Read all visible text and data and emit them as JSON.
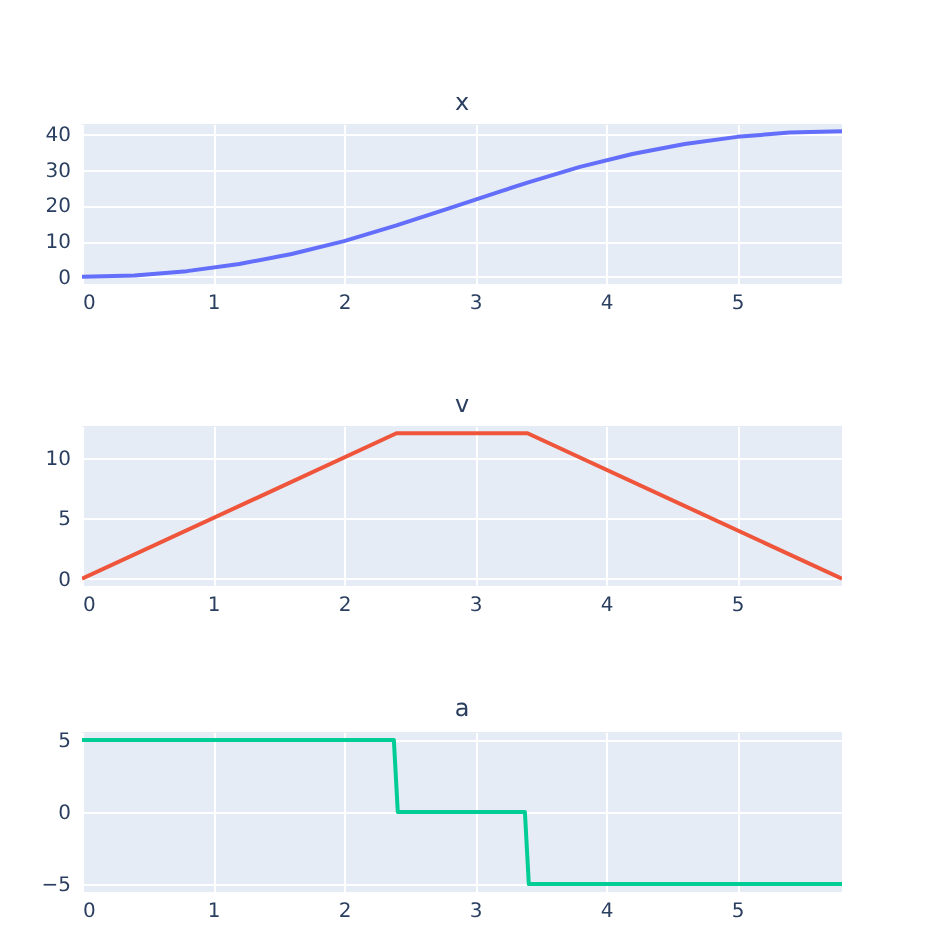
{
  "chart_data": [
    {
      "type": "line",
      "title": "x",
      "x": [
        0,
        0.4,
        0.8,
        1.2,
        1.6,
        2.0,
        2.4,
        2.8,
        3.2,
        3.4,
        3.8,
        4.2,
        4.6,
        5.0,
        5.4,
        5.8
      ],
      "series": [
        {
          "color": "#636efa",
          "values": [
            0,
            0.4,
            1.6,
            3.6,
            6.4,
            10,
            14.4,
            19.2,
            24,
            26.4,
            30.8,
            34.4,
            37.2,
            39.2,
            40.4,
            40.8
          ]
        }
      ],
      "xlim": [
        0,
        5.8
      ],
      "xticks": [
        0,
        1,
        2,
        3,
        4,
        5
      ],
      "ylim": [
        -2,
        42.8
      ],
      "yticks": [
        0,
        10,
        20,
        30,
        40
      ],
      "grid": true
    },
    {
      "type": "line",
      "title": "v",
      "x": [
        0,
        2.4,
        3.4,
        5.8
      ],
      "series": [
        {
          "color": "#ef553b",
          "values": [
            0,
            12,
            12,
            0
          ]
        }
      ],
      "xlim": [
        0,
        5.8
      ],
      "xticks": [
        0,
        1,
        2,
        3,
        4,
        5
      ],
      "ylim": [
        -0.6,
        12.6
      ],
      "yticks": [
        0,
        5,
        10
      ],
      "grid": true
    },
    {
      "type": "line",
      "title": "a",
      "x": [
        0,
        2.38,
        2.41,
        3.38,
        3.41,
        5.8
      ],
      "series": [
        {
          "color": "#00cc96",
          "values": [
            5,
            5,
            0,
            0,
            -5,
            -5
          ]
        }
      ],
      "xlim": [
        0,
        5.8
      ],
      "xticks": [
        0,
        1,
        2,
        3,
        4,
        5
      ],
      "ylim": [
        -5.55,
        5.55
      ],
      "yticks": [
        -5,
        0,
        5
      ],
      "grid": true
    }
  ]
}
